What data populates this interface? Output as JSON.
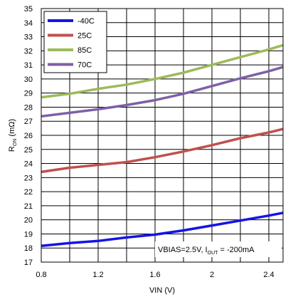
{
  "chart_data": {
    "type": "line",
    "xlabel": "VIN (V)",
    "ylabel_main": "R",
    "ylabel_sub": "ON",
    "ylabel_unit": " (mΩ)",
    "xlim": [
      0.8,
      2.5
    ],
    "ylim": [
      17,
      35
    ],
    "xticks": [
      "0.8",
      "1.2",
      "1.6",
      "2",
      "2.4"
    ],
    "yticks": [
      "17",
      "18",
      "19",
      "20",
      "21",
      "22",
      "23",
      "24",
      "25",
      "26",
      "27",
      "28",
      "29",
      "30",
      "31",
      "32",
      "33",
      "34",
      "35"
    ],
    "grid": true,
    "legend_position": "top-left",
    "annotation": {
      "prefix": "VBIAS=2.5V,  I",
      "sub": "OUT",
      "suffix": " = -200mA"
    },
    "series": [
      {
        "name": "-40C",
        "color": "#1414e6",
        "x": [
          0.8,
          1.0,
          1.2,
          1.4,
          1.6,
          1.8,
          2.0,
          2.2,
          2.4,
          2.5
        ],
        "y": [
          18.15,
          18.35,
          18.5,
          18.75,
          18.95,
          19.25,
          19.6,
          19.95,
          20.3,
          20.5
        ]
      },
      {
        "name": "25C",
        "color": "#c0504d",
        "x": [
          0.8,
          1.0,
          1.2,
          1.4,
          1.6,
          1.8,
          2.0,
          2.2,
          2.4,
          2.5
        ],
        "y": [
          23.4,
          23.7,
          23.9,
          24.1,
          24.45,
          24.85,
          25.3,
          25.8,
          26.2,
          26.45
        ]
      },
      {
        "name": "85C",
        "color": "#9bbb59",
        "x": [
          0.8,
          1.0,
          1.2,
          1.4,
          1.6,
          1.8,
          2.0,
          2.2,
          2.4,
          2.5
        ],
        "y": [
          28.7,
          28.95,
          29.3,
          29.6,
          30.0,
          30.45,
          31.0,
          31.55,
          32.1,
          32.4
        ]
      },
      {
        "name": "70C",
        "color": "#7f5fa8",
        "x": [
          0.8,
          1.0,
          1.2,
          1.4,
          1.6,
          1.8,
          2.0,
          2.2,
          2.4,
          2.5
        ],
        "y": [
          27.35,
          27.6,
          27.85,
          28.15,
          28.5,
          28.95,
          29.5,
          30.05,
          30.55,
          30.85
        ]
      }
    ]
  }
}
